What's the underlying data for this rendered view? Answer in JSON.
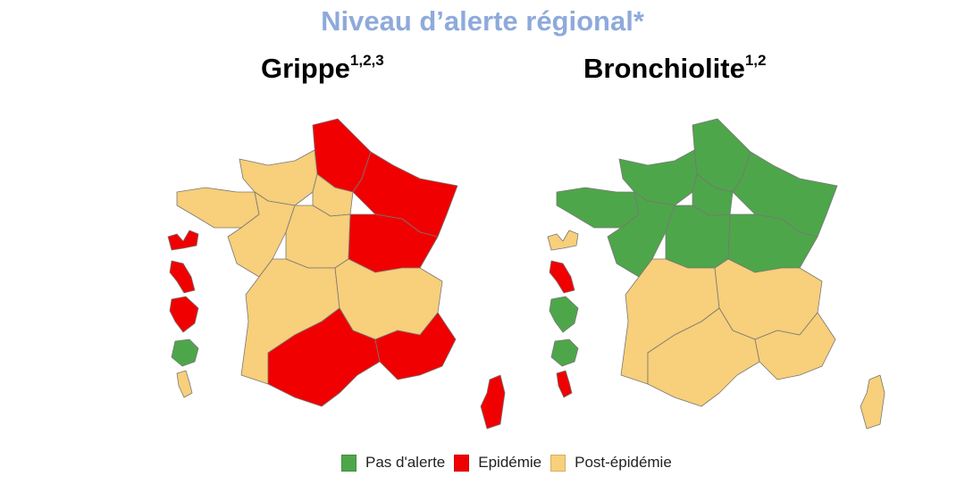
{
  "title": "Niveau d’alerte régional*",
  "colors": {
    "pas_alerte": "#4ea64a",
    "epidemie": "#f00000",
    "post_epidemie": "#f8cf7a"
  },
  "maps": [
    {
      "label": "Grippe",
      "sup": "1,2,3",
      "regions": {
        "hdf": "epidemie",
        "normandie": "post_epidemie",
        "idf": "post_epidemie",
        "grand_est": "epidemie",
        "bretagne": "post_epidemie",
        "pdl": "post_epidemie",
        "cvl": "post_epidemie",
        "bfc": "epidemie",
        "na": "post_epidemie",
        "ara": "post_epidemie",
        "occitanie": "epidemie",
        "paca": "epidemie",
        "corse": "epidemie",
        "guadeloupe": "epidemie",
        "martinique": "epidemie",
        "guyane": "epidemie",
        "reunion": "pas_alerte",
        "mayotte": "post_epidemie"
      }
    },
    {
      "label": "Bronchiolite",
      "sup": "1,2",
      "regions": {
        "hdf": "pas_alerte",
        "normandie": "pas_alerte",
        "idf": "pas_alerte",
        "grand_est": "pas_alerte",
        "bretagne": "pas_alerte",
        "pdl": "pas_alerte",
        "cvl": "pas_alerte",
        "bfc": "pas_alerte",
        "na": "post_epidemie",
        "ara": "post_epidemie",
        "occitanie": "post_epidemie",
        "paca": "post_epidemie",
        "corse": "post_epidemie",
        "guadeloupe": "post_epidemie",
        "martinique": "epidemie",
        "guyane": "pas_alerte",
        "reunion": "pas_alerte",
        "mayotte": "epidemie"
      }
    }
  ],
  "legend": [
    {
      "key": "pas_alerte",
      "label": "Pas d'alerte"
    },
    {
      "key": "epidemie",
      "label": "Epidémie"
    },
    {
      "key": "post_epidemie",
      "label": "Post-épidémie"
    }
  ]
}
